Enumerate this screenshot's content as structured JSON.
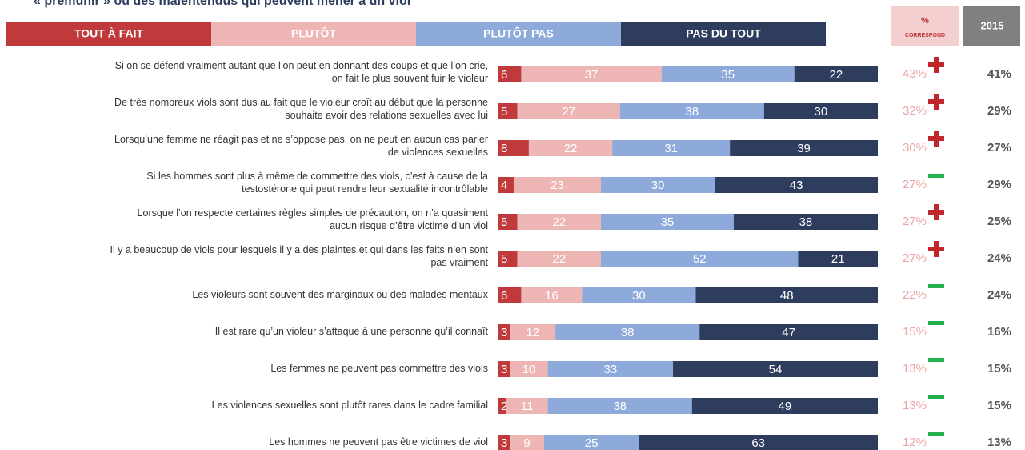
{
  "chart_data": {
    "type": "stacked-bar-horizontal",
    "title": "« premunir » ou des malentendus qui peuvent mener à un viol",
    "categories": [
      "Si on se défend vraiment autant que l’on peut en donnant des coups et que l’on crie,\non fait le plus souvent fuir le violeur",
      "De très nombreux viols sont dus au fait que le violeur croît au début que la personne\nsouhaite avoir des relations sexuelles avec lui",
      "Lorsqu’une femme ne réagit pas et ne s’oppose pas, on ne peut en aucun cas parler\nde violences sexuelles",
      "Si les hommes sont plus à même de commettre des viols, c’est à cause de la\ntestostérone qui peut rendre leur sexualité incontrôlable",
      "Lorsque l’on respecte certaines règles simples de précaution, on n’a quasiment\naucun risque d’être victime d’un viol",
      "Il y a beaucoup de viols pour lesquels il y a des plaintes et qui dans les faits n’en sont\npas vraiment",
      "Les violeurs sont souvent des marginaux ou des malades mentaux",
      "Il est rare qu’un violeur s’attaque à une personne qu’il connaît",
      "Les femmes ne peuvent pas commettre des viols",
      "Les violences sexuelles sont plutôt rares dans le cadre familial",
      "Les hommes ne peuvent pas être victimes de viol"
    ],
    "series": [
      {
        "name": "Tout à fait",
        "color": "#c0393b",
        "values": [
          6,
          5,
          8,
          4,
          5,
          5,
          6,
          3,
          3,
          2,
          3
        ]
      },
      {
        "name": "Plutôt",
        "color": "#eeb5b5",
        "values": [
          37,
          27,
          22,
          23,
          22,
          22,
          16,
          12,
          10,
          11,
          9
        ]
      },
      {
        "name": "Plutôt pas",
        "color": "#8eaadb",
        "values": [
          35,
          38,
          31,
          30,
          35,
          52,
          30,
          38,
          33,
          38,
          25
        ]
      },
      {
        "name": "Pas du tout",
        "color": "#2e3d5e",
        "values": [
          22,
          30,
          39,
          43,
          38,
          21,
          48,
          47,
          54,
          49,
          63
        ]
      }
    ],
    "xlim": [
      0,
      100
    ],
    "correspond": {
      "header": "%",
      "subheader": "CORRESPOND",
      "values": [
        43,
        32,
        30,
        27,
        27,
        27,
        22,
        15,
        13,
        13,
        12
      ],
      "value_labels": [
        "43%",
        "32%",
        "30%",
        "27%",
        "27%",
        "27%",
        "22%",
        "15%",
        "13%",
        "13%",
        "12%"
      ]
    },
    "previous": {
      "header": "2015",
      "values": [
        41,
        29,
        27,
        29,
        25,
        24,
        24,
        16,
        15,
        15,
        13
      ],
      "value_labels": [
        "41%",
        "29%",
        "27%",
        "29%",
        "25%",
        "24%",
        "24%",
        "16%",
        "15%",
        "15%",
        "13%"
      ]
    }
  }
}
